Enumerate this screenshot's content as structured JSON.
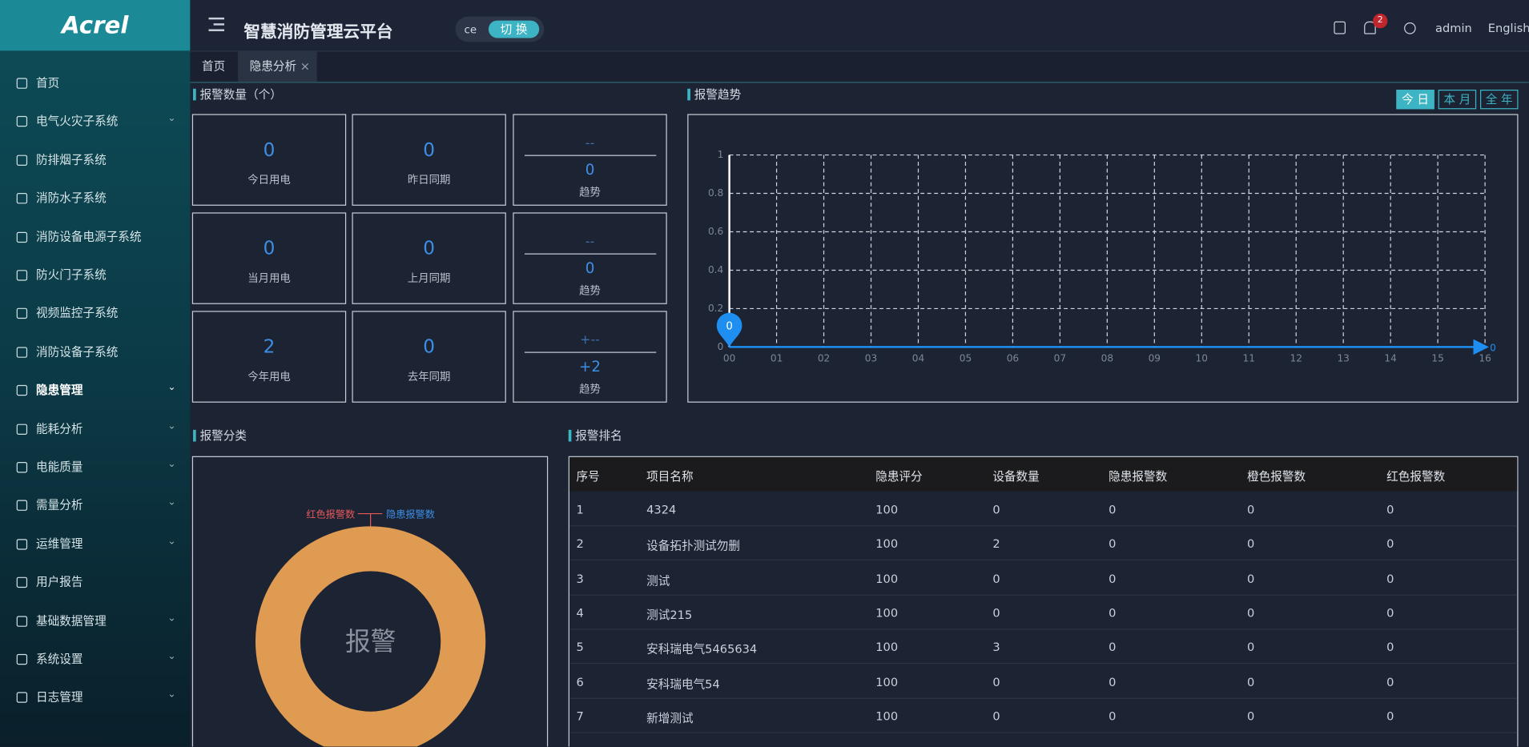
{
  "header": {
    "logo": "Acrel",
    "title": "智慧消防管理云平台",
    "project": "ce",
    "switch": "切 换",
    "notification_count": 2,
    "user": "admin",
    "language": "English"
  },
  "sidebar": {
    "active": 8,
    "items": [
      {
        "label": "首页",
        "expandable": false
      },
      {
        "label": "电气火灾子系统",
        "expandable": true
      },
      {
        "label": "防排烟子系统",
        "expandable": false
      },
      {
        "label": "消防水子系统",
        "expandable": false
      },
      {
        "label": "消防设备电源子系统",
        "expandable": false
      },
      {
        "label": "防火门子系统",
        "expandable": false
      },
      {
        "label": "视频监控子系统",
        "expandable": false
      },
      {
        "label": "消防设备子系统",
        "expandable": false
      },
      {
        "label": "隐患管理",
        "expandable": true
      },
      {
        "label": "能耗分析",
        "expandable": true
      },
      {
        "label": "电能质量",
        "expandable": true
      },
      {
        "label": "需量分析",
        "expandable": true
      },
      {
        "label": "运维管理",
        "expandable": true
      },
      {
        "label": "用户报告",
        "expandable": false
      },
      {
        "label": "基础数据管理",
        "expandable": true
      },
      {
        "label": "系统设置",
        "expandable": true
      },
      {
        "label": "日志管理",
        "expandable": true
      }
    ]
  },
  "tabs": {
    "active": 1,
    "items": [
      "首页",
      "隐患分析"
    ]
  },
  "alarm_count": {
    "title": "报警数量（个）",
    "cards": [
      {
        "value": 0,
        "label": "今日用电"
      },
      {
        "value": 0,
        "label": "昨日同期"
      },
      {
        "top": "--",
        "value": 0,
        "label": "趋势"
      },
      {
        "value": 0,
        "label": "当月用电"
      },
      {
        "value": 0,
        "label": "上月同期"
      },
      {
        "top": "--",
        "value": 0,
        "label": "趋势"
      },
      {
        "value": 2,
        "label": "今年用电"
      },
      {
        "value": 0,
        "label": "去年同期"
      },
      {
        "top": "+--",
        "value": "+2",
        "label": "趋势"
      }
    ]
  },
  "chart_data": [
    {
      "type": "line",
      "title": "报警趋势",
      "periods": [
        "今 日",
        "本 月",
        "全 年"
      ],
      "active_period": 0,
      "categories": [
        "00",
        "01",
        "02",
        "03",
        "04",
        "05",
        "06",
        "07",
        "08",
        "09",
        "10",
        "11",
        "12",
        "13",
        "14",
        "15",
        "16"
      ],
      "series": [
        {
          "color": "#1e8ff0",
          "values": [
            0,
            0,
            0,
            0,
            0,
            0,
            0,
            0,
            0,
            0,
            0,
            0,
            0,
            0,
            0,
            0,
            0
          ]
        }
      ],
      "ylim": [
        0,
        1
      ],
      "yticks": [
        0,
        0.2,
        0.4,
        0.6,
        0.8,
        1
      ],
      "grid": true
    },
    {
      "type": "pie",
      "title": "报警分类",
      "center_label": "报警",
      "categories": [
        "红色报警数",
        "隐患报警数"
      ],
      "values": [
        0,
        0
      ],
      "colors": [
        "#e8585a",
        "#3d8fe6"
      ],
      "ring_color": "#e09b52"
    }
  ],
  "ranking": {
    "title": "报警排名",
    "columns": [
      "序号",
      "项目名称",
      "隐患评分",
      "设备数量",
      "隐患报警数",
      "橙色报警数",
      "红色报警数"
    ],
    "rows": [
      [
        1,
        "4324",
        100,
        0,
        0,
        0,
        0
      ],
      [
        2,
        "设备拓扑测试勿删",
        100,
        2,
        0,
        0,
        0
      ],
      [
        3,
        "测试",
        100,
        0,
        0,
        0,
        0
      ],
      [
        4,
        "测试215",
        100,
        0,
        0,
        0,
        0
      ],
      [
        5,
        "安科瑞电气5465634",
        100,
        3,
        0,
        0,
        0
      ],
      [
        6,
        "安科瑞电气54",
        100,
        0,
        0,
        0,
        0
      ],
      [
        7,
        "新增测试",
        100,
        0,
        0,
        0,
        0
      ]
    ]
  }
}
